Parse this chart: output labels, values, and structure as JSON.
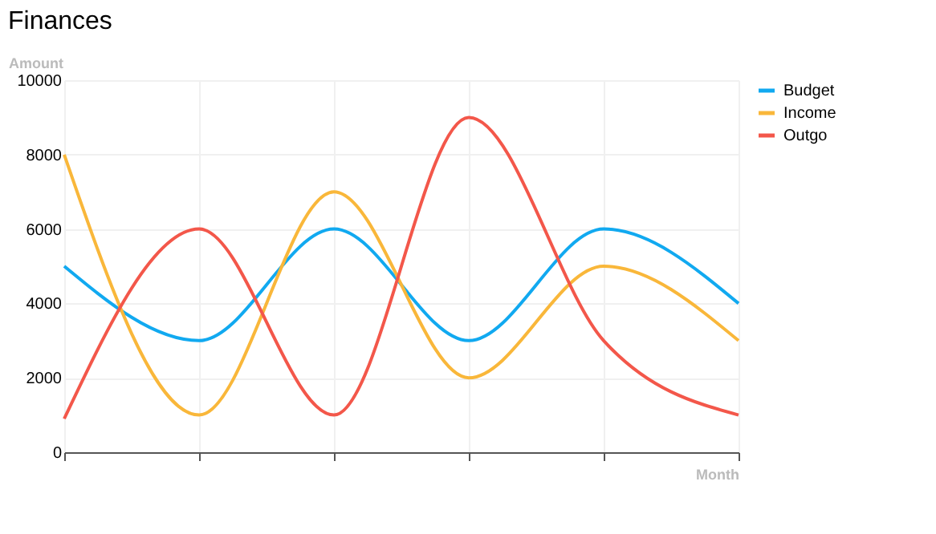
{
  "chart_data": {
    "type": "line",
    "title": "Finances",
    "xlabel": "Month",
    "ylabel": "Amount",
    "categories": [
      null,
      null,
      null,
      null,
      null,
      null
    ],
    "series": [
      {
        "name": "Budget",
        "color": "#11a9f0",
        "values": [
          5000,
          3000,
          6000,
          3000,
          6000,
          4000
        ]
      },
      {
        "name": "Income",
        "color": "#f9b73a",
        "values": [
          8000,
          1000,
          7000,
          2000,
          5000,
          3000
        ]
      },
      {
        "name": "Outgo",
        "color": "#f3574a",
        "values": [
          900,
          6000,
          1000,
          9000,
          3000,
          1000
        ]
      }
    ],
    "ylim": [
      0,
      10000
    ],
    "yticks": [
      0,
      2000,
      4000,
      6000,
      8000,
      10000
    ],
    "grid": true,
    "legend": "top right",
    "tick_labels": "y",
    "marker": "none",
    "line_style": "solid"
  }
}
